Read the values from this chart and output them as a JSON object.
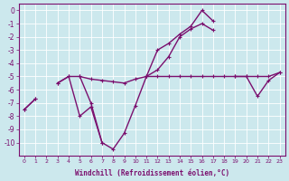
{
  "xlabel": "Windchill (Refroidissement éolien,°C)",
  "x": [
    0,
    1,
    2,
    3,
    4,
    5,
    6,
    7,
    8,
    9,
    10,
    11,
    12,
    13,
    14,
    15,
    16,
    17,
    18,
    19,
    20,
    21,
    22,
    23
  ],
  "line1_y": [
    -7.5,
    -6.7,
    null,
    -5.5,
    -5.0,
    -5.0,
    -5.2,
    -5.3,
    -5.4,
    -5.5,
    -5.2,
    -5.0,
    -5.0,
    -5.0,
    -5.0,
    -5.0,
    -5.0,
    -5.0,
    -5.0,
    -5.0,
    -5.0,
    -5.0,
    -5.0,
    -4.7
  ],
  "line2_y": [
    -7.5,
    -6.7,
    null,
    null,
    null,
    -5.0,
    -7.0,
    -10.0,
    -10.5,
    -9.3,
    -7.2,
    -5.0,
    -3.0,
    -2.5,
    -1.8,
    -1.2,
    0.0,
    -0.8,
    null,
    null,
    null,
    null,
    null,
    null
  ],
  "line3_y": [
    null,
    null,
    null,
    -5.5,
    -5.0,
    -8.0,
    -7.3,
    -10.0,
    null,
    null,
    null,
    -5.0,
    -4.5,
    -3.5,
    -2.0,
    -1.4,
    -1.0,
    -1.5,
    null,
    null,
    null,
    null,
    null,
    null
  ],
  "line4_y": [
    null,
    null,
    null,
    null,
    null,
    null,
    null,
    null,
    null,
    null,
    null,
    null,
    null,
    null,
    null,
    null,
    null,
    null,
    null,
    -5.0,
    -5.0,
    -6.5,
    -5.3,
    -4.7
  ],
  "color": "#7B0F6E",
  "bg_color": "#cce8ed",
  "grid_color": "#b0d8e0",
  "ylim": [
    -11.0,
    0.5
  ],
  "yticks": [
    0,
    -1,
    -2,
    -3,
    -4,
    -5,
    -6,
    -7,
    -8,
    -9,
    -10
  ]
}
